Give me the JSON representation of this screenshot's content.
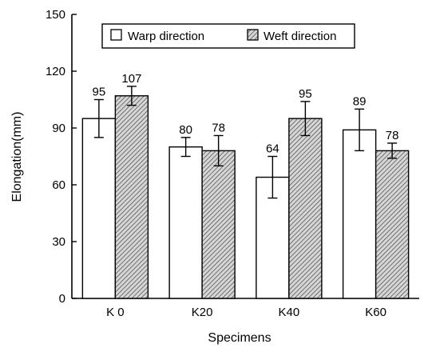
{
  "chart_data": {
    "type": "bar",
    "xlabel": "Specimens",
    "ylabel": "Elongation(mm)",
    "categories": [
      "K 0",
      "K20",
      "K40",
      "K60"
    ],
    "ylim": [
      0,
      150
    ],
    "yticks": [
      0,
      30,
      60,
      90,
      120,
      150
    ],
    "grid": false,
    "legend_position": "top-center",
    "series": [
      {
        "name": "Warp direction",
        "values": [
          95,
          80,
          64,
          89
        ],
        "data_labels": [
          "95",
          "80",
          "64",
          "89"
        ],
        "error": [
          10,
          5,
          11,
          11
        ],
        "fill": "white"
      },
      {
        "name": "Weft direction",
        "values": [
          107,
          78,
          95,
          78
        ],
        "data_labels": [
          "107",
          "78",
          "95",
          "78"
        ],
        "error": [
          5,
          8,
          9,
          4
        ],
        "fill": "hatched"
      }
    ]
  },
  "colors": {
    "axis": "#000000",
    "warp_fill": "#ffffff",
    "weft_hatch_bg": "#d6d6d6",
    "weft_hatch_line": "#555555"
  }
}
